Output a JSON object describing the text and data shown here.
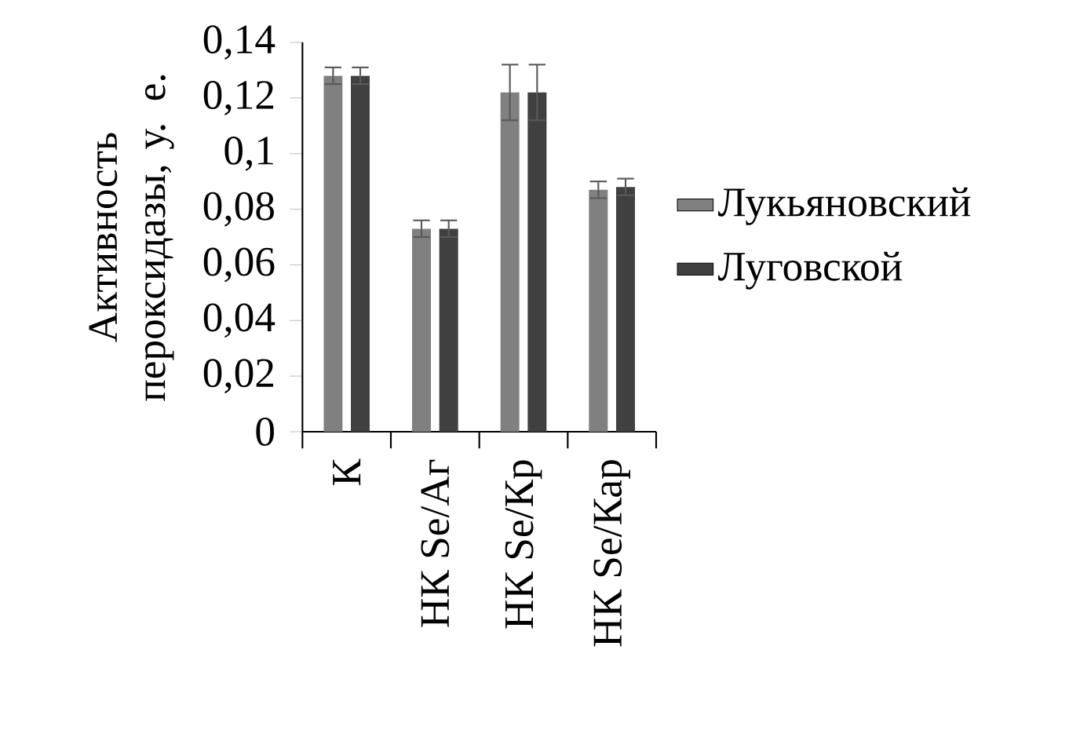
{
  "chart_data": {
    "type": "bar",
    "ylabel": "Активность пероксидазы, у. е.",
    "categories": [
      "К",
      "НК Se/Аг",
      "НК Se/Кр",
      "НК Se/Кар"
    ],
    "series": [
      {
        "name": "Лукьяновский",
        "color": "#808080",
        "values": [
          0.128,
          0.073,
          0.122,
          0.087
        ],
        "errors": [
          0.003,
          0.003,
          0.01,
          0.003
        ]
      },
      {
        "name": "Луговской",
        "color": "#404040",
        "values": [
          0.128,
          0.073,
          0.122,
          0.088
        ],
        "errors": [
          0.003,
          0.003,
          0.01,
          0.003
        ]
      }
    ],
    "ylim": [
      0,
      0.14
    ],
    "yticks": [
      0,
      {
        "value": 0.02,
        "label": "0,02"
      },
      {
        "value": 0.04,
        "label": "0,04"
      },
      {
        "value": 0.06,
        "label": "0,06"
      },
      {
        "value": 0.08,
        "label": "0,08"
      },
      {
        "value": 0.1,
        "label": "0,1"
      },
      {
        "value": 0.12,
        "label": "0,12"
      },
      {
        "value": 0.14,
        "label": "0,14"
      }
    ],
    "legend": "right",
    "grid": false
  }
}
